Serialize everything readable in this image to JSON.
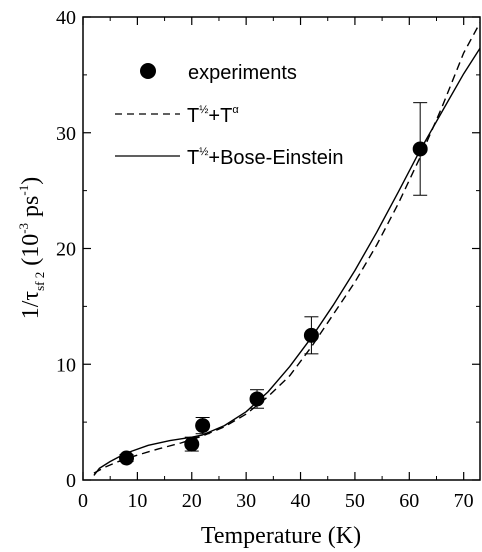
{
  "chart_data": {
    "type": "scatter",
    "xlabel": "Temperature (K)",
    "ylabel_main": "1/τ",
    "ylabel_sub": "sf 2",
    "ylabel_unit_pre": "(10",
    "ylabel_unit_exp": "-3",
    "ylabel_unit_mid": " ps",
    "ylabel_unit_exp2": "-1",
    "ylabel_unit_post": ")",
    "xlim": [
      0,
      73
    ],
    "ylim": [
      0,
      40
    ],
    "x_ticks": [
      "0",
      "10",
      "20",
      "30",
      "40",
      "50",
      "60",
      "70"
    ],
    "y_ticks": [
      "0",
      "10",
      "20",
      "30",
      "40"
    ],
    "legend": {
      "placement": "top-left",
      "experiments": "experiments",
      "dashed_base": "T",
      "dashed_exp1": "½",
      "dashed_mid": "+T",
      "dashed_exp2": "α",
      "solid_base": "T",
      "solid_exp1": "½",
      "solid_rest": "+Bose-Einstein"
    },
    "series": [
      {
        "kind": "points",
        "x": [
          8,
          20,
          22,
          32,
          42,
          62
        ],
        "y": [
          1.9,
          3.1,
          4.7,
          7.0,
          12.5,
          28.6
        ],
        "y_err_low": [
          0.3,
          0.6,
          0.7,
          0.8,
          1.6,
          4.0
        ],
        "y_err_high": [
          0.3,
          0.6,
          0.7,
          0.8,
          1.6,
          4.0
        ]
      },
      {
        "kind": "dashed",
        "x": [
          2,
          4,
          6,
          8,
          10,
          14,
          18,
          22,
          26,
          30,
          34,
          38,
          42,
          46,
          50,
          54,
          58,
          62,
          66,
          70,
          73
        ],
        "y": [
          0.6,
          1.1,
          1.5,
          1.85,
          2.15,
          2.7,
          3.2,
          3.8,
          4.6,
          5.7,
          7.2,
          9.0,
          11.5,
          14.3,
          17.1,
          20.3,
          23.9,
          27.9,
          32.2,
          36.9,
          39.5
        ]
      },
      {
        "kind": "solid",
        "x": [
          2,
          3,
          5,
          7,
          9,
          12,
          16,
          20,
          22,
          26,
          30,
          34,
          38,
          42,
          46,
          50,
          54,
          58,
          62,
          66,
          70,
          73
        ],
        "y": [
          0.4,
          1.0,
          1.6,
          2.1,
          2.5,
          3.0,
          3.4,
          3.7,
          3.9,
          4.7,
          5.9,
          7.6,
          9.8,
          12.3,
          15.1,
          18.1,
          21.4,
          24.9,
          28.5,
          31.8,
          35.1,
          37.3
        ]
      }
    ]
  }
}
